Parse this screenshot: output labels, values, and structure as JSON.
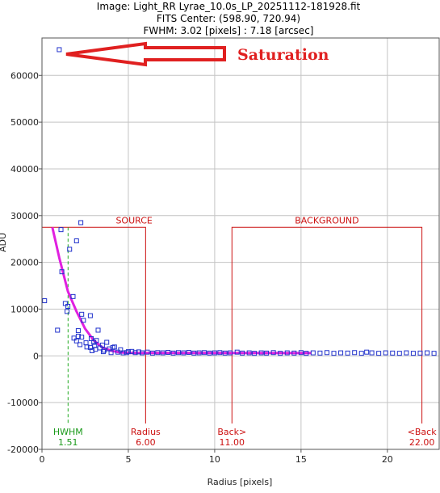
{
  "header": {
    "line1": "Image: Light_RR Lyrae_10.0s_LP_20251112-181928.fit",
    "line2": "FITS Center: (598.90,  720.94)",
    "line3": "FWHM: 3.02 [pixels] : 7.18 [arcsec]"
  },
  "chart_data": {
    "type": "scatter",
    "xlabel": "Radius [pixels]",
    "ylabel": "ADU",
    "xlim": [
      0,
      23
    ],
    "ylim": [
      -20000,
      68000
    ],
    "xticks": [
      0,
      5,
      10,
      15,
      20
    ],
    "yticks": [
      -20000,
      -10000,
      0,
      10000,
      20000,
      30000,
      40000,
      50000,
      60000
    ],
    "grid": true,
    "points": [
      [
        1.0,
        65500
      ],
      [
        0.15,
        11800
      ],
      [
        0.9,
        5500
      ],
      [
        1.1,
        27000
      ],
      [
        1.15,
        18000
      ],
      [
        1.35,
        11200
      ],
      [
        1.45,
        9500
      ],
      [
        1.5,
        10600
      ],
      [
        1.6,
        22800
      ],
      [
        1.8,
        12700
      ],
      [
        1.85,
        3800
      ],
      [
        2.0,
        24600
      ],
      [
        2.0,
        3200
      ],
      [
        2.1,
        5400
      ],
      [
        2.1,
        4200
      ],
      [
        2.2,
        2400
      ],
      [
        2.25,
        28500
      ],
      [
        2.3,
        8900
      ],
      [
        2.3,
        4000
      ],
      [
        2.4,
        7600
      ],
      [
        2.55,
        2800
      ],
      [
        2.6,
        1900
      ],
      [
        2.8,
        8600
      ],
      [
        2.8,
        1800
      ],
      [
        2.85,
        3700
      ],
      [
        2.9,
        1100
      ],
      [
        3.0,
        2900
      ],
      [
        3.05,
        2200
      ],
      [
        3.1,
        1400
      ],
      [
        3.15,
        3300
      ],
      [
        3.25,
        5500
      ],
      [
        3.35,
        1700
      ],
      [
        3.5,
        2300
      ],
      [
        3.55,
        900
      ],
      [
        3.6,
        1200
      ],
      [
        3.75,
        2900
      ],
      [
        3.9,
        1500
      ],
      [
        4.0,
        700
      ],
      [
        4.1,
        1800
      ],
      [
        4.2,
        1900
      ],
      [
        4.4,
        800
      ],
      [
        4.55,
        1300
      ],
      [
        4.7,
        650
      ],
      [
        4.9,
        700
      ],
      [
        5.0,
        900
      ],
      [
        5.2,
        950
      ],
      [
        5.4,
        700
      ],
      [
        5.6,
        850
      ],
      [
        5.8,
        650
      ],
      [
        6.1,
        800
      ],
      [
        6.4,
        600
      ],
      [
        6.7,
        700
      ],
      [
        7.0,
        650
      ],
      [
        7.3,
        750
      ],
      [
        7.6,
        600
      ],
      [
        7.9,
        700
      ],
      [
        8.2,
        650
      ],
      [
        8.5,
        750
      ],
      [
        8.8,
        600
      ],
      [
        9.1,
        650
      ],
      [
        9.4,
        700
      ],
      [
        9.7,
        600
      ],
      [
        10.0,
        650
      ],
      [
        10.3,
        700
      ],
      [
        10.6,
        600
      ],
      [
        10.9,
        650
      ],
      [
        11.3,
        800
      ],
      [
        11.6,
        600
      ],
      [
        12.0,
        650
      ],
      [
        12.3,
        550
      ],
      [
        12.7,
        650
      ],
      [
        13.0,
        600
      ],
      [
        13.4,
        700
      ],
      [
        13.8,
        550
      ],
      [
        14.2,
        650
      ],
      [
        14.6,
        600
      ],
      [
        15.0,
        700
      ],
      [
        15.3,
        550
      ],
      [
        15.7,
        650
      ],
      [
        16.1,
        600
      ],
      [
        16.5,
        700
      ],
      [
        16.9,
        550
      ],
      [
        17.3,
        650
      ],
      [
        17.7,
        600
      ],
      [
        18.1,
        700
      ],
      [
        18.5,
        550
      ],
      [
        18.8,
        800
      ],
      [
        19.1,
        650
      ],
      [
        19.5,
        550
      ],
      [
        19.9,
        650
      ],
      [
        20.3,
        600
      ],
      [
        20.7,
        550
      ],
      [
        21.1,
        650
      ],
      [
        21.5,
        550
      ],
      [
        21.9,
        600
      ],
      [
        22.3,
        650
      ],
      [
        22.7,
        550
      ]
    ],
    "fit_line": [
      [
        0.6,
        27500
      ],
      [
        1.0,
        21000
      ],
      [
        1.5,
        13800
      ],
      [
        2.0,
        9500
      ],
      [
        2.5,
        5800
      ],
      [
        3.0,
        3300
      ],
      [
        3.5,
        1800
      ],
      [
        4.0,
        1100
      ],
      [
        4.5,
        750
      ],
      [
        5.0,
        620
      ],
      [
        15.6,
        600
      ]
    ],
    "hwhm": {
      "label": "HWHM",
      "value": "1.51",
      "x": 1.51
    },
    "source_box": {
      "label": "SOURCE",
      "x0": 0,
      "x1": 6.0,
      "ytop": 27500
    },
    "background_box": {
      "label": "BACKGROUND",
      "x0": 11.0,
      "x1": 22.0,
      "ytop": 27500
    },
    "markers": [
      {
        "label": "Radius",
        "value": "6.00",
        "x": 6.0
      },
      {
        "label": "Back>",
        "value": "11.00",
        "x": 11.0
      },
      {
        "label": "<Back",
        "value": "22.00",
        "x": 22.0
      }
    ],
    "annotation": {
      "text": "Saturation"
    },
    "colors": {
      "points": "#2233cc",
      "fit": "#e020e0",
      "boxes": "#cc1111",
      "hwhm": "#22aa22",
      "grid": "#c4c4c4",
      "arrow": "#e02020"
    }
  }
}
